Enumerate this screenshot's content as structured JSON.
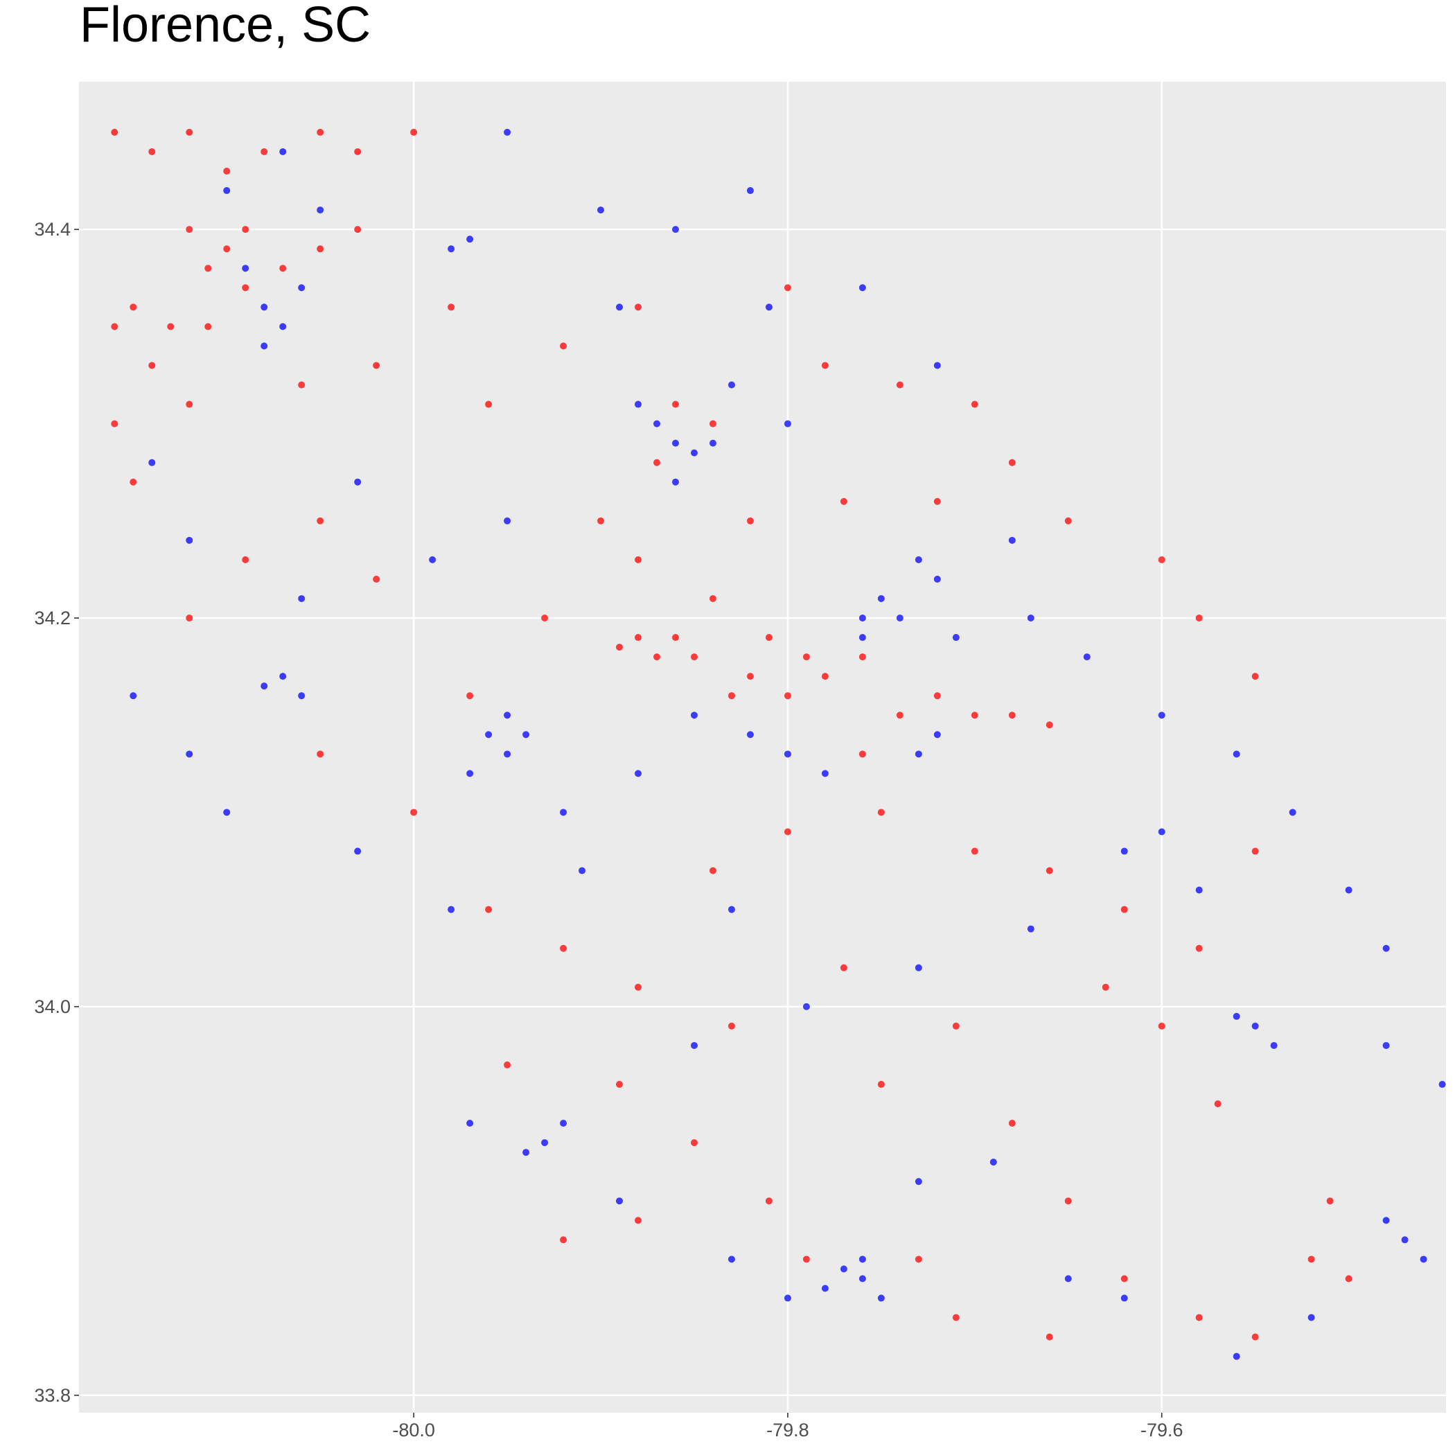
{
  "chart_data": {
    "type": "scatter",
    "title": "Florence, SC",
    "xlim": [
      -80.179,
      -79.448
    ],
    "ylim": [
      33.791,
      34.476
    ],
    "xticks": [
      {
        "value": -80,
        "label": "-80.0"
      },
      -79.8,
      -79.6
    ],
    "yticks": [
      33.8,
      {
        "value": 34,
        "label": "34.0"
      },
      34.2,
      34.4
    ],
    "grid": true,
    "series": [
      {
        "color": "#0000ff",
        "x": [
          -80.09,
          -80.08,
          -80.07,
          -80.08,
          -80.06,
          -80.1,
          -80.07,
          -80.05,
          -79.97,
          -79.98,
          -79.95,
          -79.9,
          -79.86,
          -79.82,
          -79.76,
          -79.81,
          -79.89,
          -79.87,
          -79.86,
          -79.85,
          -79.84,
          -79.86,
          -79.88,
          -79.83,
          -79.8,
          -79.72,
          -80.14,
          -80.12,
          -80.06,
          -80.03,
          -79.99,
          -79.95,
          -79.96,
          -79.95,
          -79.94,
          -79.95,
          -79.97,
          -80.07,
          -80.08,
          -80.06,
          -80.12,
          -80.15,
          -80.1,
          -80.03,
          -79.98,
          -79.91,
          -79.88,
          -79.85,
          -79.82,
          -79.8,
          -79.78,
          -79.76,
          -79.75,
          -79.74,
          -79.76,
          -79.72,
          -79.73,
          -79.71,
          -79.72,
          -79.73,
          -79.68,
          -79.67,
          -79.64,
          -79.6,
          -79.56,
          -79.53,
          -79.5,
          -79.48,
          -79.55,
          -79.56,
          -79.54,
          -79.48,
          -79.45,
          -79.48,
          -79.47,
          -79.46,
          -79.52,
          -79.56,
          -79.62,
          -79.65,
          -79.69,
          -79.73,
          -79.76,
          -79.77,
          -79.78,
          -79.76,
          -79.75,
          -79.8,
          -79.83,
          -79.93,
          -79.94,
          -79.92,
          -79.97,
          -79.89,
          -79.85,
          -79.79,
          -79.73,
          -79.67,
          -79.62,
          -79.58,
          -79.6,
          -79.83,
          -79.92
        ],
        "values": [
          34.38,
          34.36,
          34.35,
          34.34,
          34.37,
          34.42,
          34.44,
          34.41,
          34.395,
          34.39,
          34.45,
          34.41,
          34.4,
          34.42,
          34.37,
          34.36,
          34.36,
          34.3,
          34.29,
          34.285,
          34.29,
          34.27,
          34.31,
          34.32,
          34.3,
          34.33,
          34.28,
          34.24,
          34.21,
          34.27,
          34.23,
          34.25,
          34.14,
          34.13,
          34.14,
          34.15,
          34.12,
          34.17,
          34.165,
          34.16,
          34.13,
          34.16,
          34.1,
          34.08,
          34.05,
          34.07,
          34.12,
          34.15,
          34.14,
          34.13,
          34.12,
          34.2,
          34.21,
          34.2,
          34.19,
          34.22,
          34.23,
          34.19,
          34.14,
          34.13,
          34.24,
          34.2,
          34.18,
          34.15,
          34.13,
          34.1,
          34.06,
          34.03,
          33.99,
          33.995,
          33.98,
          33.98,
          33.96,
          33.89,
          33.88,
          33.87,
          33.84,
          33.82,
          33.85,
          33.86,
          33.92,
          33.91,
          33.86,
          33.865,
          33.855,
          33.87,
          33.85,
          33.85,
          33.87,
          33.93,
          33.925,
          33.94,
          33.94,
          33.9,
          33.98,
          34.0,
          34.02,
          34.04,
          34.08,
          34.06,
          34.09,
          34.05,
          34.1
        ]
      },
      {
        "color": "#ff0000",
        "x": [
          -80.16,
          -80.14,
          -80.12,
          -80.1,
          -80.08,
          -80.05,
          -80.03,
          -80.0,
          -80.12,
          -80.1,
          -80.09,
          -80.11,
          -80.15,
          -80.16,
          -80.13,
          -80.11,
          -80.09,
          -80.07,
          -80.05,
          -80.03,
          -80.14,
          -80.12,
          -80.16,
          -80.15,
          -80.06,
          -80.02,
          -79.98,
          -79.96,
          -79.92,
          -79.88,
          -79.86,
          -79.84,
          -79.87,
          -79.8,
          -79.78,
          -79.74,
          -79.7,
          -79.68,
          -79.82,
          -79.77,
          -79.72,
          -79.65,
          -79.6,
          -79.58,
          -79.55,
          -79.88,
          -79.87,
          -79.86,
          -79.89,
          -79.85,
          -79.82,
          -79.8,
          -79.78,
          -79.76,
          -79.79,
          -79.81,
          -79.83,
          -79.74,
          -79.72,
          -79.7,
          -79.68,
          -79.66,
          -79.76,
          -79.88,
          -79.9,
          -79.84,
          -80.02,
          -80.05,
          -80.09,
          -80.12,
          -80.05,
          -80.0,
          -79.97,
          -79.93,
          -79.96,
          -79.92,
          -79.88,
          -79.84,
          -79.8,
          -79.75,
          -79.7,
          -79.66,
          -79.62,
          -79.58,
          -79.55,
          -79.89,
          -79.85,
          -79.81,
          -79.79,
          -79.75,
          -79.71,
          -79.68,
          -79.65,
          -79.62,
          -79.58,
          -79.55,
          -79.52,
          -79.5,
          -79.51,
          -79.57,
          -79.6,
          -79.63,
          -79.66,
          -79.71,
          -79.73,
          -79.88,
          -79.92,
          -79.95,
          -79.83,
          -79.77
        ],
        "values": [
          34.45,
          34.44,
          34.45,
          34.43,
          34.44,
          34.45,
          34.44,
          34.45,
          34.4,
          34.39,
          34.4,
          34.38,
          34.36,
          34.35,
          34.35,
          34.35,
          34.37,
          34.38,
          34.39,
          34.4,
          34.33,
          34.31,
          34.3,
          34.27,
          34.32,
          34.33,
          34.36,
          34.31,
          34.34,
          34.36,
          34.31,
          34.3,
          34.28,
          34.37,
          34.33,
          34.32,
          34.31,
          34.28,
          34.25,
          34.26,
          34.26,
          34.25,
          34.23,
          34.2,
          34.17,
          34.19,
          34.18,
          34.19,
          34.185,
          34.18,
          34.17,
          34.16,
          34.17,
          34.18,
          34.18,
          34.19,
          34.16,
          34.15,
          34.16,
          34.15,
          34.15,
          34.145,
          34.13,
          34.23,
          34.25,
          34.21,
          34.22,
          34.25,
          34.23,
          34.2,
          34.13,
          34.1,
          34.16,
          34.2,
          34.05,
          34.03,
          34.01,
          34.07,
          34.09,
          34.1,
          34.08,
          34.07,
          34.05,
          34.03,
          34.08,
          33.96,
          33.93,
          33.9,
          33.87,
          33.96,
          33.99,
          33.94,
          33.9,
          33.86,
          33.84,
          33.83,
          33.87,
          33.86,
          33.9,
          33.95,
          33.99,
          34.01,
          33.83,
          33.84,
          33.87,
          33.89,
          33.88,
          33.97,
          33.99,
          34.02
        ]
      }
    ]
  }
}
